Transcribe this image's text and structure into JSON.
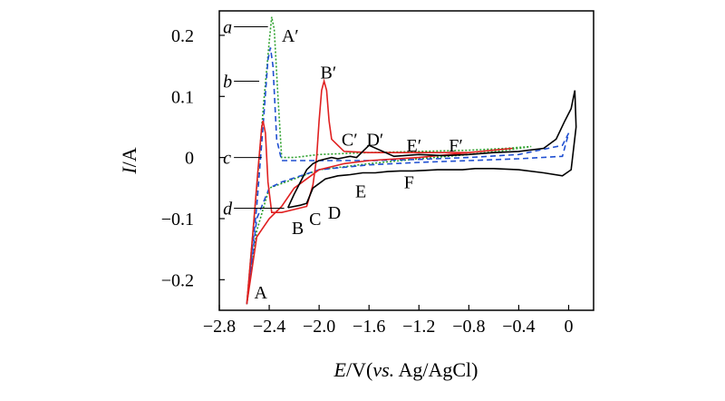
{
  "chart_data": {
    "type": "line",
    "xlabel_parts": {
      "var": "E",
      "unit": "/V(",
      "vs": "vs.",
      "ref": " Ag/AgCl)"
    },
    "ylabel_parts": {
      "var": "I",
      "unit": "/A"
    },
    "xlim": [
      -2.8,
      0.2
    ],
    "ylim": [
      -0.25,
      0.24
    ],
    "x_ticks": [
      -2.8,
      -2.4,
      -2.0,
      -1.6,
      -1.2,
      -0.8,
      -0.4,
      0
    ],
    "x_tick_labels": [
      "−2.8",
      "−2.4",
      "−2.0",
      "−1.6",
      "−1.2",
      "−0.8",
      "−0.4",
      "0"
    ],
    "y_ticks": [
      -0.2,
      -0.1,
      0,
      0.1,
      0.2
    ],
    "y_tick_labels": [
      "−0.2",
      "−0.1",
      "0",
      "0.1",
      "0.2"
    ],
    "grid": false,
    "series": [
      {
        "label_key": "a",
        "color": "#2ca02c",
        "dash": "dotted",
        "x": [
          -2.58,
          -2.5,
          -2.44,
          -2.4,
          -2.38,
          -2.36,
          -2.33,
          -2.3,
          -2.2,
          -2.0,
          -1.6,
          -1.2,
          -0.8,
          -0.5,
          -0.3,
          -0.5,
          -0.8,
          -1.2,
          -1.6,
          -2.0,
          -2.4,
          -2.5,
          -2.58
        ],
        "y": [
          -0.24,
          -0.05,
          0.1,
          0.19,
          0.23,
          0.21,
          0.1,
          0.0,
          0.0,
          0.005,
          0.008,
          0.01,
          0.012,
          0.015,
          0.018,
          0.012,
          0.005,
          -0.002,
          -0.01,
          -0.02,
          -0.05,
          -0.12,
          -0.24
        ]
      },
      {
        "label_key": "b",
        "color": "#1f4fd1",
        "dash": "dashed",
        "x": [
          -2.58,
          -2.5,
          -2.45,
          -2.41,
          -2.39,
          -2.37,
          -2.34,
          -2.3,
          -2.0,
          -1.6,
          -1.2,
          -0.8,
          -0.4,
          -0.05,
          0.0,
          -0.05,
          -0.4,
          -0.8,
          -1.2,
          -1.6,
          -2.0,
          -2.3,
          -2.4,
          -2.5,
          -2.58
        ],
        "y": [
          -0.24,
          -0.08,
          0.05,
          0.16,
          0.18,
          0.15,
          0.03,
          -0.005,
          -0.005,
          -0.005,
          -0.003,
          0.0,
          0.005,
          0.02,
          0.04,
          0.002,
          -0.002,
          -0.005,
          -0.008,
          -0.012,
          -0.02,
          -0.04,
          -0.05,
          -0.1,
          -0.24
        ]
      },
      {
        "label_key": "c",
        "color": "#e02020",
        "dash": "solid",
        "x": [
          -2.58,
          -2.53,
          -2.49,
          -2.46,
          -2.45,
          -2.43,
          -2.41,
          -2.38,
          -2.3,
          -2.2,
          -2.1,
          -2.05,
          -2.02,
          -2.0,
          -1.98,
          -1.96,
          -1.94,
          -1.92,
          -1.9,
          -1.85,
          -1.8,
          -1.6,
          -1.2,
          -0.8,
          -0.45,
          -0.8,
          -1.2,
          -1.6,
          -1.8,
          -2.0,
          -2.1,
          -2.2,
          -2.3,
          -2.4,
          -2.5,
          -2.58
        ],
        "y": [
          -0.24,
          -0.12,
          -0.02,
          0.05,
          0.06,
          0.04,
          -0.04,
          -0.09,
          -0.09,
          -0.085,
          -0.08,
          -0.045,
          0.0,
          0.06,
          0.11,
          0.125,
          0.11,
          0.06,
          0.03,
          0.02,
          0.01,
          0.008,
          0.008,
          0.008,
          0.015,
          0.008,
          0.0,
          -0.005,
          -0.01,
          -0.02,
          -0.035,
          -0.05,
          -0.08,
          -0.1,
          -0.13,
          -0.24
        ]
      },
      {
        "label_key": "d",
        "color": "#000000",
        "dash": "solid",
        "x": [
          -2.25,
          -2.15,
          -2.1,
          -2.05,
          -1.95,
          -1.85,
          -1.75,
          -1.65,
          -1.55,
          -1.45,
          -1.35,
          -1.25,
          -1.15,
          -1.05,
          -0.95,
          -0.85,
          -0.75,
          -0.6,
          -0.4,
          -0.2,
          -0.05,
          0.02,
          0.06,
          0.05,
          0.02,
          -0.03,
          -0.1,
          -0.2,
          -0.4,
          -0.6,
          -0.8,
          -1.0,
          -1.2,
          -1.4,
          -1.6,
          -1.7,
          -1.75,
          -1.8,
          -1.85,
          -1.9,
          -2.0,
          -2.05,
          -2.1,
          -2.15,
          -2.2,
          -2.25
        ],
        "y": [
          -0.082,
          -0.078,
          -0.075,
          -0.05,
          -0.035,
          -0.03,
          -0.028,
          -0.025,
          -0.025,
          -0.023,
          -0.022,
          -0.022,
          -0.021,
          -0.02,
          -0.02,
          -0.02,
          -0.018,
          -0.018,
          -0.02,
          -0.025,
          -0.03,
          -0.02,
          0.05,
          0.11,
          0.08,
          0.06,
          0.03,
          0.015,
          0.01,
          0.008,
          0.005,
          0.003,
          0.005,
          0.002,
          0.02,
          0.0,
          0.002,
          0.0,
          -0.002,
          0.0,
          -0.005,
          -0.01,
          -0.02,
          -0.04,
          -0.06,
          -0.082
        ]
      }
    ],
    "annotations": [
      {
        "text": "A",
        "x": -2.52,
        "y": -0.22
      },
      {
        "text": "A′",
        "x": -2.3,
        "y": 0.2
      },
      {
        "text": "B",
        "x": -2.22,
        "y": -0.115
      },
      {
        "text": "B′",
        "x": -1.99,
        "y": 0.14
      },
      {
        "text": "C",
        "x": -2.08,
        "y": -0.1
      },
      {
        "text": "C′",
        "x": -1.82,
        "y": 0.03
      },
      {
        "text": "D",
        "x": -1.93,
        "y": -0.09
      },
      {
        "text": "D′",
        "x": -1.62,
        "y": 0.03
      },
      {
        "text": "E",
        "x": -1.71,
        "y": -0.055
      },
      {
        "text": "E′",
        "x": -1.3,
        "y": 0.02
      },
      {
        "text": "F",
        "x": -1.32,
        "y": -0.04
      },
      {
        "text": "F′",
        "x": -0.96,
        "y": 0.02
      }
    ],
    "curve_labels": [
      {
        "text": "a",
        "x": -2.77,
        "y": 0.214,
        "leader_end_x": -2.41,
        "leader_end_y": 0.214
      },
      {
        "text": "b",
        "x": -2.77,
        "y": 0.125,
        "leader_end_x": -2.48,
        "leader_end_y": 0.125
      },
      {
        "text": "c",
        "x": -2.77,
        "y": 0.0,
        "leader_end_x": -2.46,
        "leader_end_y": 0.0
      },
      {
        "text": "d",
        "x": -2.77,
        "y": -0.083,
        "leader_end_x": -2.28,
        "leader_end_y": -0.083
      }
    ]
  }
}
